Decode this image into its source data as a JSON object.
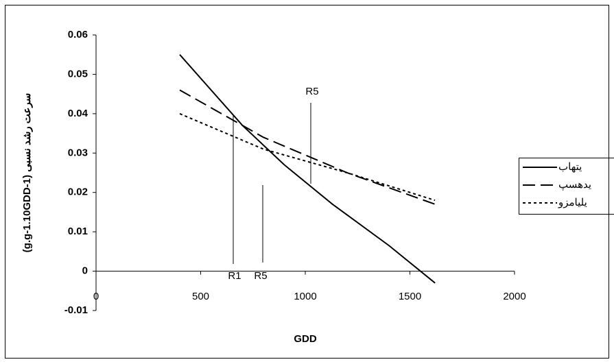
{
  "chart_data": {
    "type": "line",
    "x_label": "GDD",
    "y_label": "سرعت رشد نسبی (g.g-1.10GDD-1)",
    "series": [
      {
        "name": "یتهاب",
        "color": "#000000",
        "dash": "solid",
        "x": [
          400,
          700,
          900,
          1130,
          1400,
          1620
        ],
        "values": [
          0.055,
          0.037,
          0.027,
          0.017,
          0.0065,
          -0.003
        ]
      },
      {
        "name": "یدهسپ",
        "color": "#000000",
        "dash": "dashed",
        "x": [
          400,
          800,
          1200,
          1620
        ],
        "values": [
          0.046,
          0.034,
          0.025,
          0.017
        ]
      },
      {
        "name": "یلیامزو",
        "color": "#000000",
        "dash": "dotted",
        "x": [
          400,
          800,
          1200,
          1620
        ],
        "values": [
          0.04,
          0.031,
          0.025,
          0.018
        ]
      }
    ],
    "annotations": [
      "R5",
      "R1",
      "R5"
    ],
    "xlim": [
      0,
      2000
    ],
    "xticks": [
      0,
      500,
      1000,
      1500,
      2000
    ],
    "ylim": [
      -0.01,
      0.06
    ],
    "yticks": [
      {
        "value": -0.01,
        "label": "-0.01"
      },
      {
        "value": 0,
        "label": "0"
      },
      {
        "value": 0.01,
        "label": "0.01"
      },
      {
        "value": 0.02,
        "label": "0.02"
      },
      {
        "value": 0.03,
        "label": "0.03"
      },
      {
        "value": 0.04,
        "label": "0.04"
      },
      {
        "value": 0.05,
        "label": "0.05"
      },
      {
        "value": 0.06,
        "label": "0.06"
      }
    ],
    "grid": false,
    "legend": "right"
  }
}
